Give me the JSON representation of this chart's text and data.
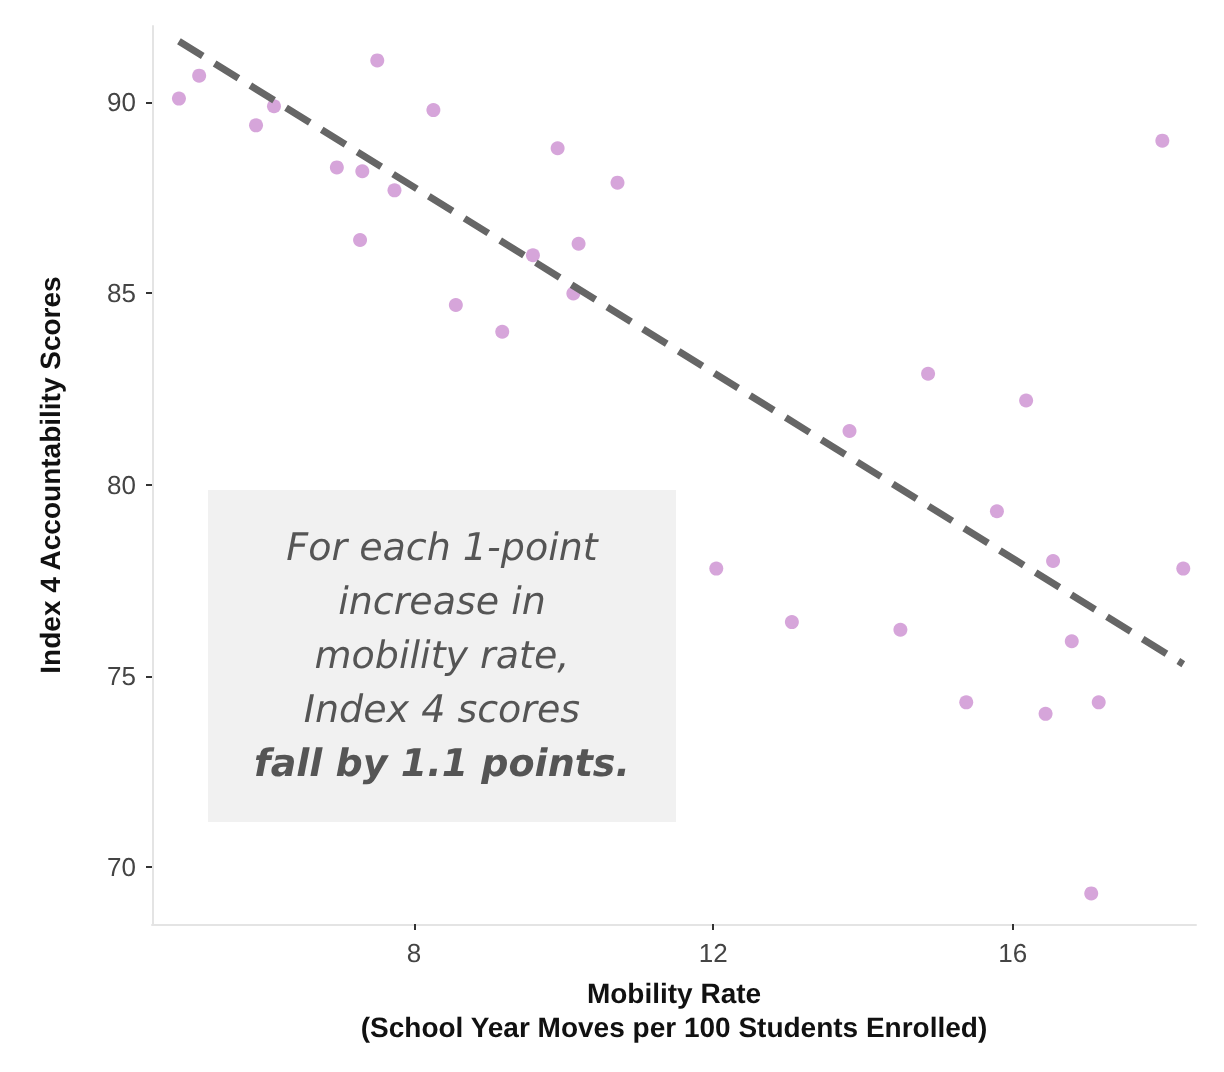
{
  "chart_data": {
    "type": "scatter",
    "xlabel": "Mobility Rate\n(School Year Moves per 100 Students Enrolled)",
    "ylabel": "Index 4 Accountability Scores",
    "xlim": [
      4.5,
      18.45
    ],
    "ylim": [
      68.5,
      92
    ],
    "xticks": [
      8,
      12,
      16
    ],
    "yticks": [
      70,
      75,
      80,
      85,
      90
    ],
    "grid": false,
    "marker": "circle",
    "series": [
      {
        "color": "#cc8fd1",
        "x": [
          4.86,
          5.13,
          5.89,
          6.13,
          6.97,
          7.31,
          7.28,
          7.51,
          7.74,
          8.26,
          8.56,
          9.18,
          9.59,
          9.92,
          10.13,
          10.2,
          10.72,
          12.04,
          13.05,
          13.82,
          14.5,
          14.87,
          15.38,
          15.79,
          16.18,
          16.44,
          16.54,
          16.79,
          17.05,
          17.15,
          18.0,
          18.28
        ],
        "values": [
          90.1,
          90.7,
          89.4,
          89.9,
          88.3,
          88.2,
          86.4,
          91.1,
          87.7,
          89.8,
          84.7,
          84.0,
          86.0,
          88.8,
          85.0,
          86.3,
          87.9,
          77.8,
          76.4,
          81.4,
          76.2,
          82.9,
          74.3,
          79.3,
          82.2,
          74.0,
          78.0,
          75.9,
          69.3,
          74.3,
          89.0,
          77.8
        ]
      },
      {
        "type": "line",
        "color": "#666666",
        "line_style": "dashed",
        "marker": "none",
        "x": [
          4.86,
          18.28
        ],
        "values": [
          91.6,
          75.3
        ]
      }
    ],
    "annotations": [
      "For each 1-point increase in mobility rate, Index 4 scores",
      "fall by 1.1 points."
    ]
  }
}
